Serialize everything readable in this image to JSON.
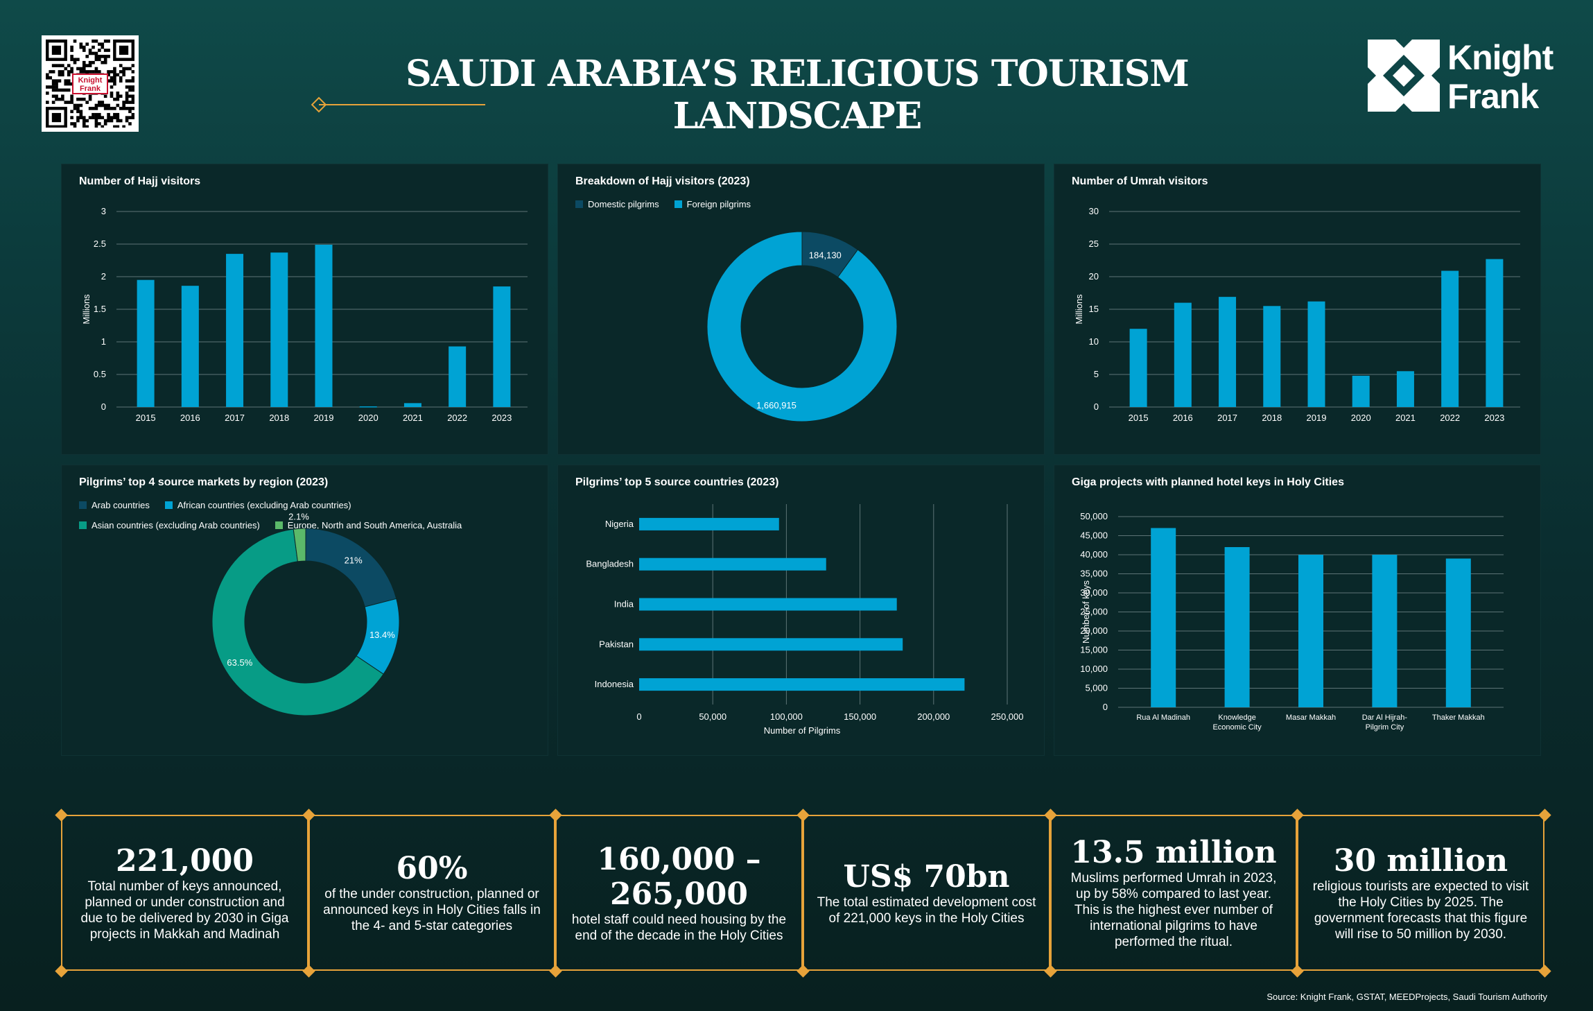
{
  "header": {
    "title": "SAUDI ARABIA’S RELIGIOUS TOURISM LANDSCAPE",
    "logo_line1": "Knight",
    "logo_line2": "Frank",
    "qr_logo_line1": "Knight",
    "qr_logo_line2": "Frank"
  },
  "colors": {
    "bar": "#00a3d4",
    "dark_teal": "#0c4a63",
    "donut_light": "#00a3d4",
    "asian": "#079c86",
    "europe": "#5bb96a",
    "accent": "#e7a33a"
  },
  "chart_data": [
    {
      "id": "hajj",
      "type": "bar",
      "title": "Number of Hajj visitors",
      "ylabel": "Millions",
      "categories": [
        "2015",
        "2016",
        "2017",
        "2018",
        "2019",
        "2020",
        "2021",
        "2022",
        "2023"
      ],
      "values": [
        1.95,
        1.86,
        2.35,
        2.37,
        2.49,
        0.01,
        0.06,
        0.93,
        1.85
      ],
      "ylim": [
        0,
        3
      ],
      "yticks": [
        "0",
        "0.5",
        "1",
        "1.5",
        "2",
        "2.5",
        "3"
      ]
    },
    {
      "id": "hajj_breakdown",
      "type": "pie",
      "title": "Breakdown of Hajj visitors (2023)",
      "labels": [
        "Domestic pilgrims",
        "Foreign pilgrims"
      ],
      "values": [
        184130,
        1660915
      ],
      "value_labels": [
        "184,130",
        "1,660,915"
      ]
    },
    {
      "id": "umrah",
      "type": "bar",
      "title": "Number of Umrah visitors",
      "ylabel": "Millions",
      "categories": [
        "2015",
        "2016",
        "2017",
        "2018",
        "2019",
        "2020",
        "2021",
        "2022",
        "2023"
      ],
      "values": [
        12.0,
        16.0,
        16.9,
        15.5,
        16.2,
        4.8,
        5.5,
        20.9,
        22.7
      ],
      "ylim": [
        0,
        30
      ],
      "yticks": [
        "0",
        "5",
        "10",
        "15",
        "20",
        "25",
        "30"
      ]
    },
    {
      "id": "regions",
      "type": "pie",
      "title": "Pilgrims’ top 4  source markets by region (2023)",
      "labels": [
        "Arab countries",
        "African countries (excluding Arab countries)",
        "Asian countries (excluding Arab countries)",
        "Europe, North and South America, Australia"
      ],
      "values": [
        21,
        13.4,
        63.5,
        2.1
      ],
      "value_labels": [
        "21%",
        "13.4%",
        "63.5%",
        "2.1%"
      ]
    },
    {
      "id": "countries",
      "type": "bar",
      "orientation": "horizontal",
      "title": "Pilgrims’ top 5 source countries (2023)",
      "xlabel": "Number of Pilgrims",
      "categories": [
        "Nigeria",
        "Bangladesh",
        "India",
        "Pakistan",
        "Indonesia"
      ],
      "values": [
        95000,
        127000,
        175000,
        179000,
        221000
      ],
      "xlim": [
        0,
        250000
      ],
      "xticks": [
        "0",
        "50,000",
        "100,000",
        "150,000",
        "200,000",
        "250,000"
      ]
    },
    {
      "id": "giga",
      "type": "bar",
      "title": "Giga projects with planned hotel keys in Holy Cities",
      "ylabel": "Number of keys",
      "categories": [
        "Rua Al Madinah",
        "Knowledge Economic City",
        "Masar Makkah",
        "Dar Al Hijrah-Pilgrim City",
        "Thaker Makkah"
      ],
      "category_lines": [
        [
          "Rua Al Madinah"
        ],
        [
          "Knowledge",
          "Economic City"
        ],
        [
          "Masar Makkah"
        ],
        [
          "Dar Al Hijrah-",
          "Pilgrim City"
        ],
        [
          "Thaker Makkah"
        ]
      ],
      "values": [
        47000,
        42000,
        40000,
        40000,
        39000
      ],
      "ylim": [
        0,
        50000
      ],
      "yticks": [
        "0",
        "5,000",
        "10,000",
        "15,000",
        "20,000",
        "25,000",
        "30,000",
        "35,000",
        "40,000",
        "45,000",
        "50,000"
      ]
    }
  ],
  "stats": [
    {
      "value": "221,000",
      "desc": "Total number of keys announced, planned or under construction and due to be delivered  by 2030 in Giga projects in Makkah and Madinah"
    },
    {
      "value": "60%",
      "desc": "of the under construction, planned or announced keys in Holy Cities falls in the 4- and 5-star categories"
    },
    {
      "value": "160,000 –265,000",
      "desc": "hotel staff could need housing by the end of the decade in the Holy Cities"
    },
    {
      "value": "US$ 70bn",
      "desc": "The total estimated development cost of 221,000 keys in the Holy Cities"
    },
    {
      "value": "13.5 million",
      "desc": "Muslims performed Umrah in 2023, up by 58% compared to last year. This is the highest ever number of international pilgrims to have performed the ritual."
    },
    {
      "value": "30 million",
      "desc": "religious tourists are expected to visit the Holy Cities by 2025. The government forecasts that this figure will rise to 50 million by 2030."
    }
  ],
  "source": "Source: Knight Frank, GSTAT, MEEDProjects, Saudi Tourism Authority"
}
